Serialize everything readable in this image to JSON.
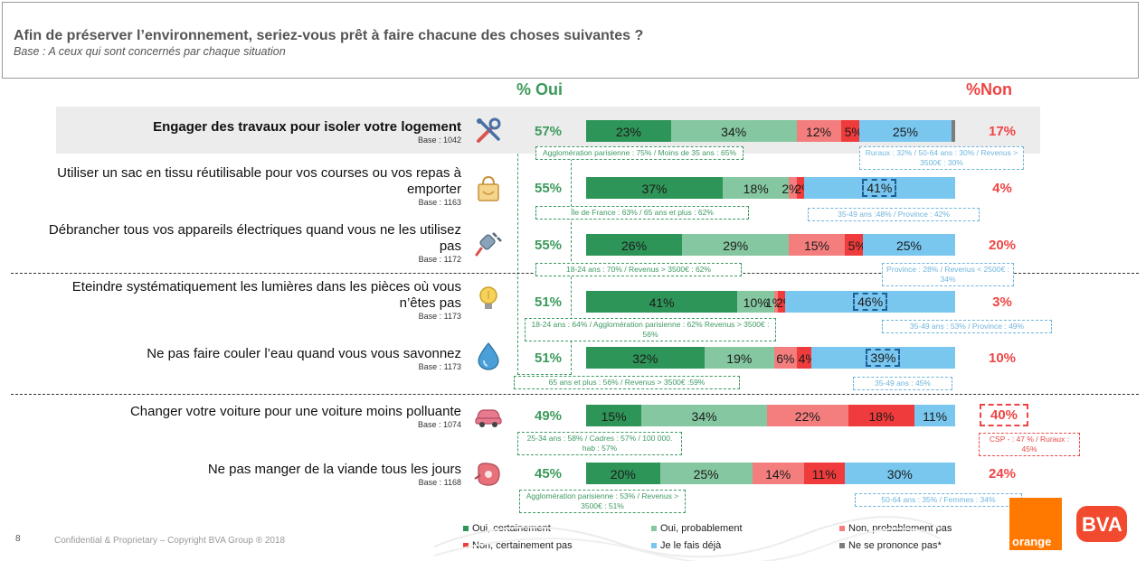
{
  "header": {
    "title": "Afin de préserver l’environnement, seriez-vous prêt à faire chacune des choses suivantes ?",
    "subtitle": "Base : A ceux qui sont concernés par chaque situation"
  },
  "columns": {
    "oui": "% Oui",
    "non": "%Non"
  },
  "chart_data": {
    "type": "bar",
    "orientation": "horizontal-stacked",
    "series_names": [
      "Oui, certainement",
      "Oui, probablement",
      "Non, probablement pas",
      "Non, certainement pas",
      "Je le fais déjà",
      "Ne se prononce pas*"
    ],
    "colors": {
      "oui_cert": "#2e9558",
      "oui_prob": "#84c7a0",
      "non_prob": "#f47e7e",
      "non_cert": "#ef3b3b",
      "deja": "#79c6ef",
      "nsp": "#7d7d7d",
      "green_text": "#3b9a5a",
      "red_text": "#f04444"
    },
    "rows": [
      {
        "label": "Engager des travaux pour isoler votre logement",
        "base": "Base : 1042",
        "oui": "57%",
        "non": "17%",
        "values": [
          23,
          34,
          12,
          5,
          25,
          1
        ],
        "labels": [
          "23%",
          "34%",
          "12%",
          "5%",
          "25%",
          ""
        ],
        "note_green": "Agglomération parisienne : 75% / Moins de 35 ans : 65%",
        "note_blue": "Ruraux : 32% / 50-64 ans : 30% / Revenus > 3500€ : 30%"
      },
      {
        "label": "Utiliser un sac en tissu réutilisable pour vos courses ou vos repas à emporter",
        "base": "Base : 1163",
        "oui": "55%",
        "non": "4%",
        "values": [
          37,
          18,
          2,
          2,
          41,
          0
        ],
        "labels": [
          "37%",
          "18%",
          "2%",
          "2%",
          "41%",
          ""
        ],
        "note_green": "Île de France : 63% / 65 ans et plus : 62%",
        "note_blue": "35-49 ans :48% / Province : 42%"
      },
      {
        "label": "Débrancher tous vos appareils électriques quand vous ne les utilisez pas",
        "base": "Base : 1172",
        "oui": "55%",
        "non": "20%",
        "values": [
          26,
          29,
          15,
          5,
          25,
          0
        ],
        "labels": [
          "26%",
          "29%",
          "15%",
          "5%",
          "25%",
          ""
        ],
        "note_green": "18-24 ans : 70% / Revenus > 3500€ : 62%",
        "note_blue": "Province : 28% / Revenus < 2500€ : 34%"
      },
      {
        "label": "Eteindre systématiquement les lumières dans les pièces où vous n’êtes pas",
        "base": "Base : 1173",
        "oui": "51%",
        "non": "3%",
        "values": [
          41,
          10,
          1,
          2,
          46,
          0
        ],
        "labels": [
          "41%",
          "10%",
          "1%",
          "2%",
          "46%",
          ""
        ],
        "note_green": "18-24 ans : 64% / Agglomération parisienne : 62% Revenus > 3500€ : 56%",
        "note_blue": "35-49 ans : 53% / Province : 49%"
      },
      {
        "label": "Ne pas faire couler l’eau quand vous vous savonnez",
        "base": "Base : 1173",
        "oui": "51%",
        "non": "10%",
        "values": [
          32,
          19,
          6,
          4,
          39,
          0
        ],
        "labels": [
          "32%",
          "19%",
          "6%",
          "4%",
          "39%",
          ""
        ],
        "note_green": "65 ans et plus : 56% / Revenus > 3500€ :59%",
        "note_blue": "35-49 ans : 45%"
      },
      {
        "label": "Changer votre voiture pour une voiture moins polluante",
        "base": "Base : 1074",
        "oui": "49%",
        "non": "40%",
        "values": [
          15,
          34,
          22,
          18,
          11,
          0
        ],
        "labels": [
          "15%",
          "34%",
          "22%",
          "18%",
          "11%",
          ""
        ],
        "note_green": "25-34 ans : 58% / Cadres : 57% / 100 000. hab : 57%",
        "note_red": "CSP - : 47 % / Ruraux : 45%"
      },
      {
        "label": "Ne pas manger de la viande tous les jours",
        "base": "Base : 1168",
        "oui": "45%",
        "non": "24%",
        "values": [
          20,
          25,
          14,
          11,
          30,
          0
        ],
        "labels": [
          "20%",
          "25%",
          "14%",
          "11%",
          "30%",
          ""
        ],
        "note_green": "Agglomération parisienne : 53% / Revenus > 3500€ : 51%",
        "note_blue": "50-64 ans : 35% / Femmes : 34%"
      }
    ]
  },
  "legend": [
    {
      "label": "Oui, certainement",
      "color": "#2e9558"
    },
    {
      "label": "Oui, probablement",
      "color": "#84c7a0"
    },
    {
      "label": "Non, probablement pas",
      "color": "#f47e7e"
    },
    {
      "label": "Non, certainement pas",
      "color": "#ef3b3b"
    },
    {
      "label": "Je le fais déjà",
      "color": "#79c6ef"
    },
    {
      "label": "Ne se prononce pas*",
      "color": "#7d7d7d"
    }
  ],
  "footer": {
    "page": "8",
    "text": "Confidential & Proprietary – Copyright BVA Group ® 2018"
  },
  "logos": {
    "orange": "orange",
    "bva": "BVA"
  }
}
